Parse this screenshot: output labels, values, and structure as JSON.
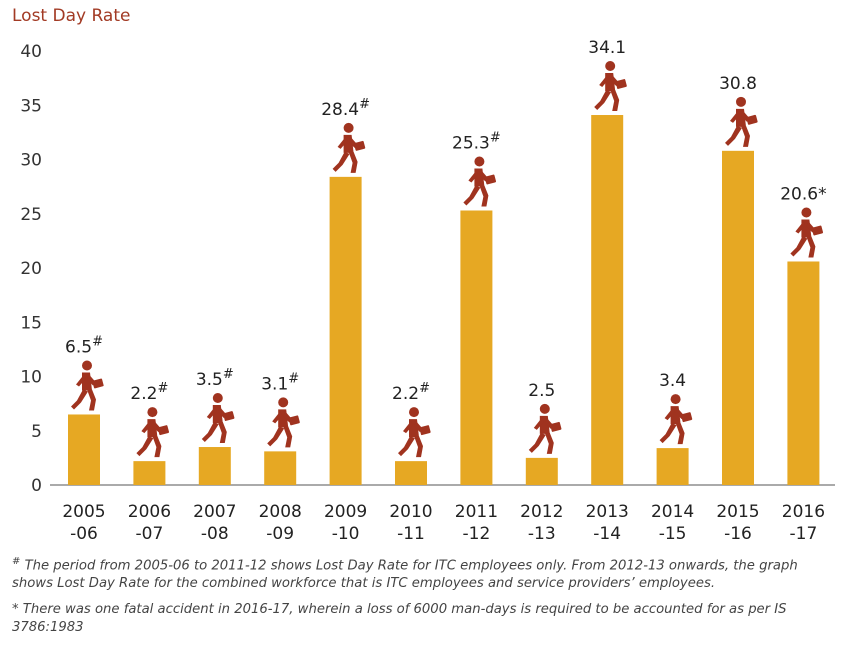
{
  "chart_data": {
    "type": "bar",
    "title": "Lost Day Rate",
    "xlabel": "",
    "ylabel": "",
    "ylim": [
      0,
      40
    ],
    "yticks": [
      0,
      5,
      10,
      15,
      20,
      25,
      30,
      35,
      40
    ],
    "grid": false,
    "categories": [
      [
        "2005",
        "-06"
      ],
      [
        "2006",
        "-07"
      ],
      [
        "2007",
        "-08"
      ],
      [
        "2008",
        "-09"
      ],
      [
        "2009",
        "-10"
      ],
      [
        "2010",
        "-11"
      ],
      [
        "2011",
        "-12"
      ],
      [
        "2012",
        "-13"
      ],
      [
        "2013",
        "-14"
      ],
      [
        "2014",
        "-15"
      ],
      [
        "2015",
        "-16"
      ],
      [
        "2016",
        "-17"
      ]
    ],
    "values": [
      6.5,
      2.2,
      3.5,
      3.1,
      28.4,
      2.2,
      25.3,
      2.5,
      34.1,
      3.4,
      30.8,
      20.6
    ],
    "value_labels": [
      "6.5",
      "2.2",
      "3.5",
      "3.1",
      "28.4",
      "2.2",
      "25.3",
      "2.5",
      "34.1",
      "3.4",
      "30.8",
      "20.6"
    ],
    "label_marks": [
      "#",
      "#",
      "#",
      "#",
      "#",
      "#",
      "#",
      "",
      "",
      "",
      "",
      "*"
    ],
    "colors": {
      "bar": "#e6a823",
      "icon": "#a0331f",
      "title": "#a23a24",
      "axis": "#555555"
    }
  },
  "footnotes": {
    "hash_mark": "#",
    "hash_text": " The period from 2005-06 to 2011-12 shows Lost Day Rate for ITC employees only. From 2012-13 onwards, the graph shows Lost Day Rate for the combined workforce that is ITC employees and service providers’ employees.",
    "star_mark": "*",
    "star_text": " There was one fatal accident in 2016-17, wherein a loss of 6000 man-days is required to be accounted for as per IS 3786:1983"
  },
  "icons": {
    "worker": "walking-worker-with-briefcase-icon"
  }
}
